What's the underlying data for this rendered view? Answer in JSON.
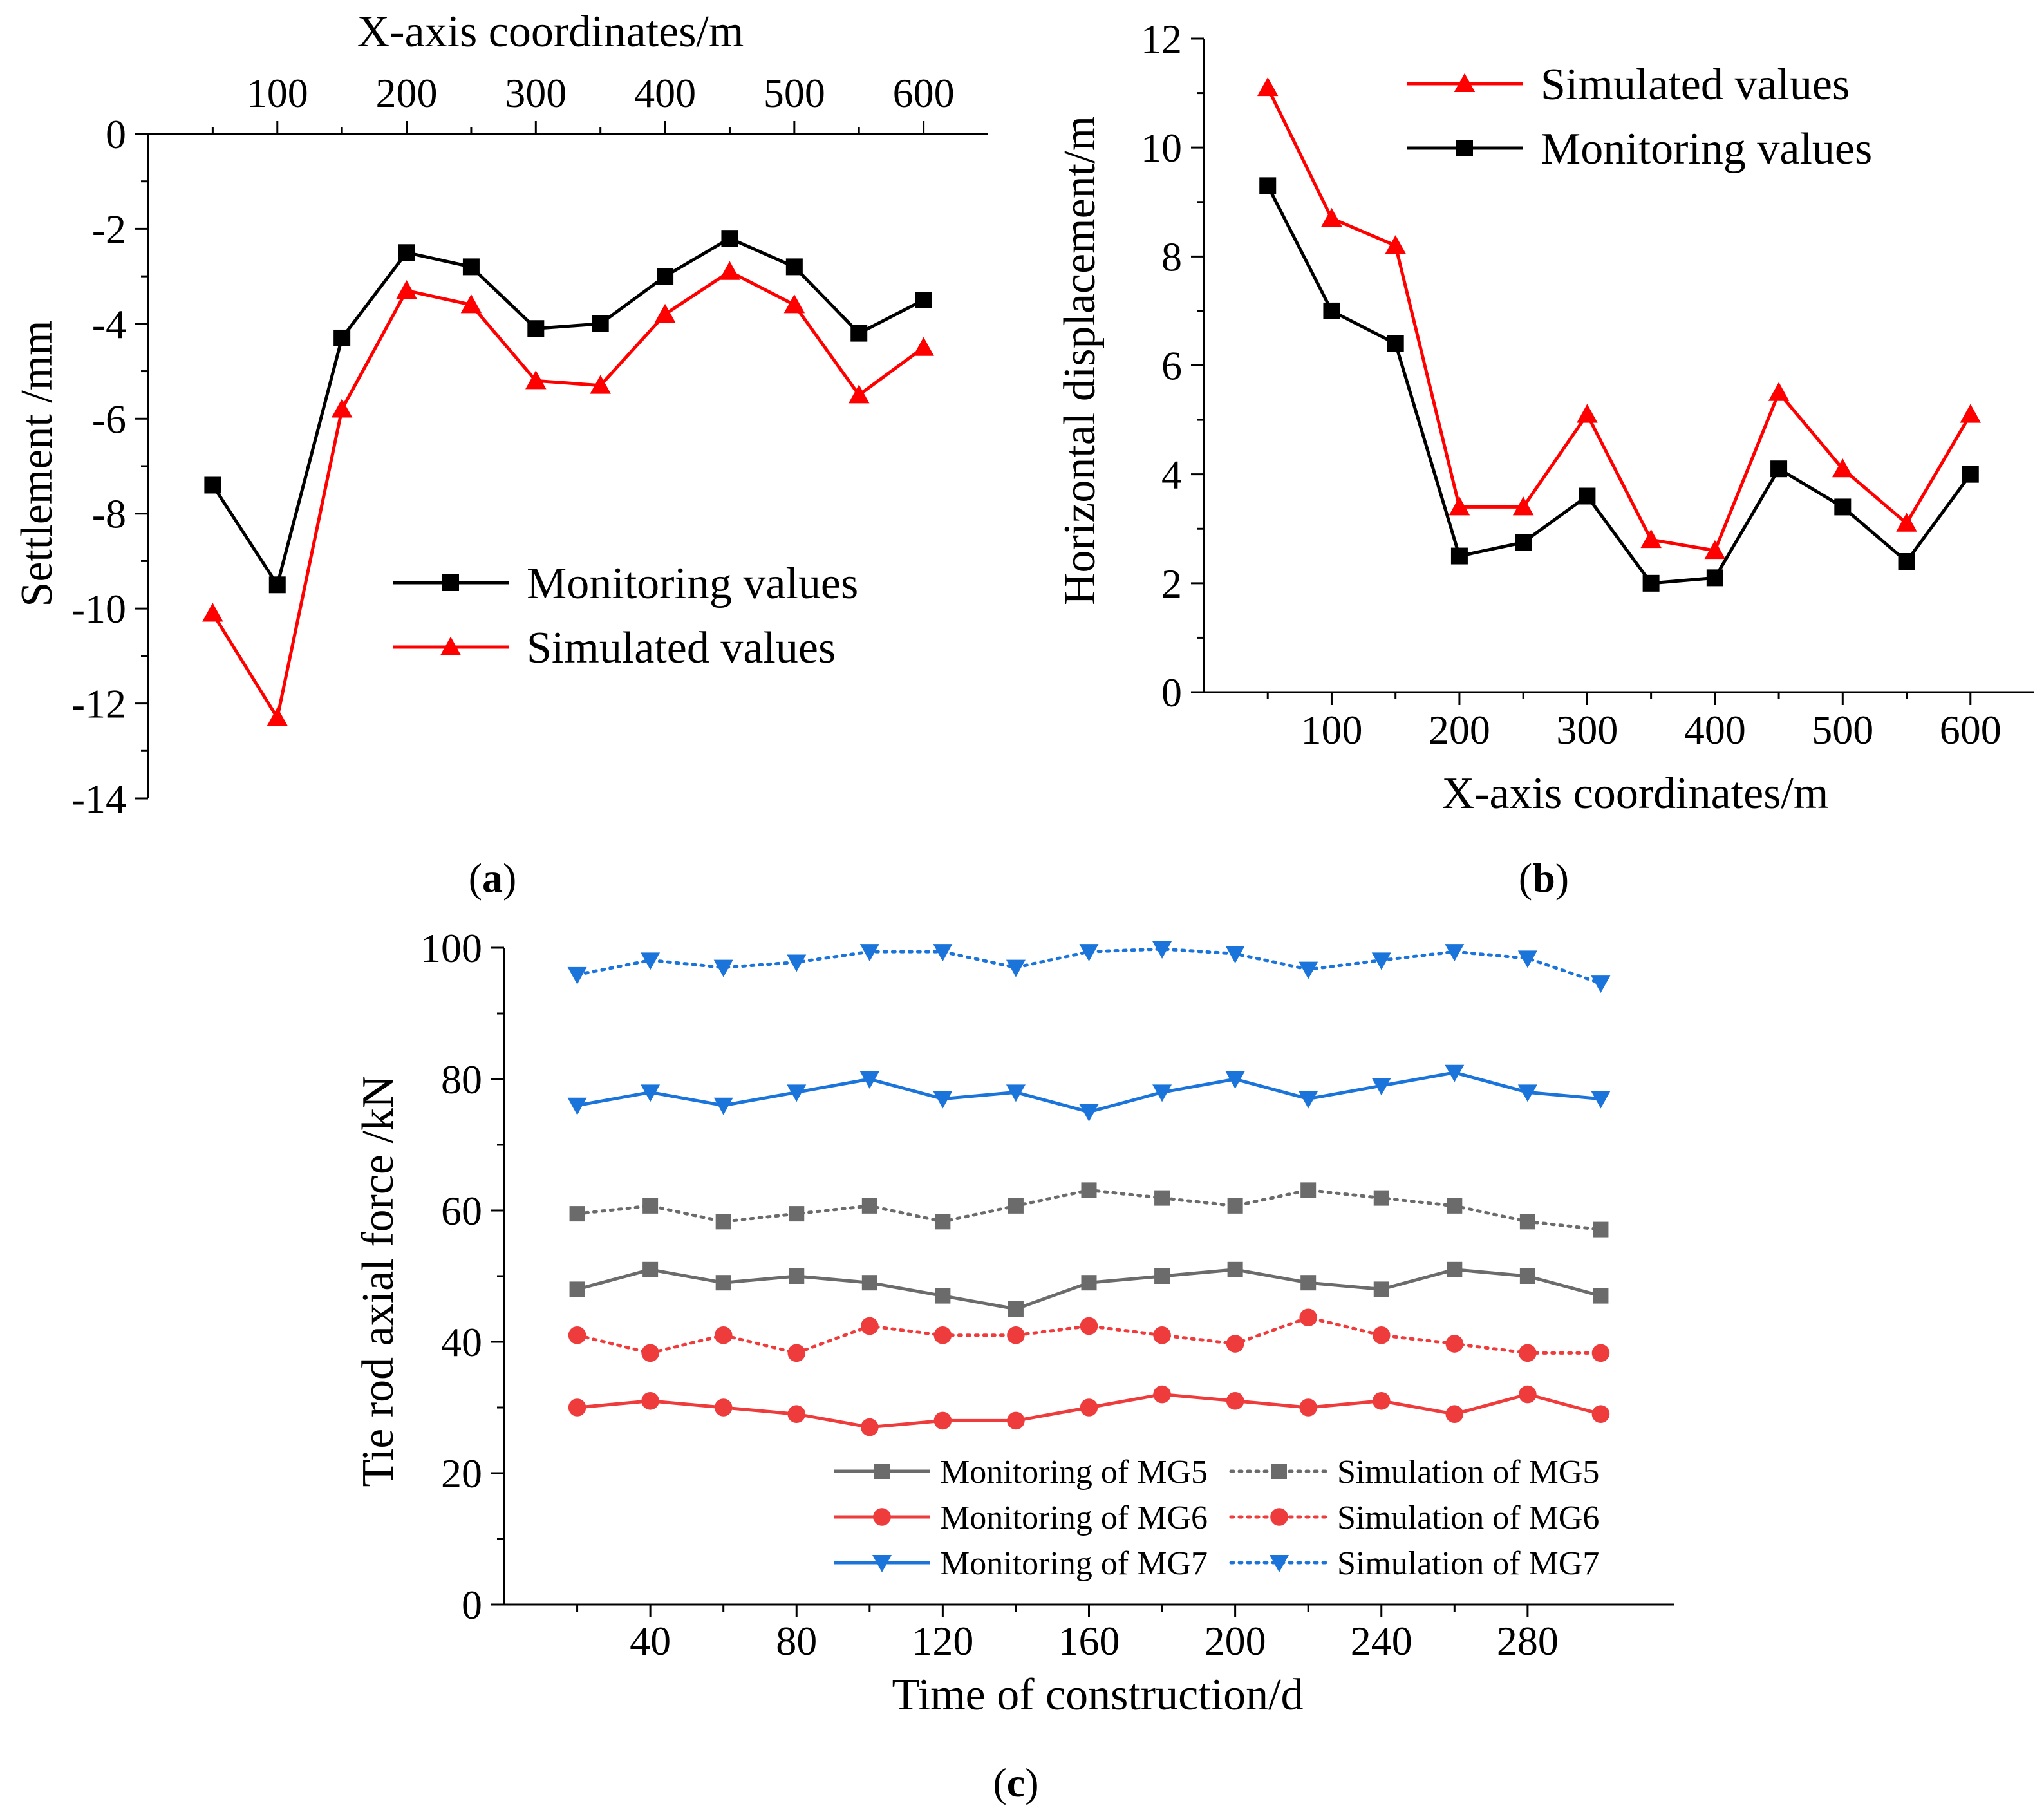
{
  "chart_data": [
    {
      "panel": "(a)",
      "panel_letter": "a",
      "type": "line",
      "title": "",
      "xlabel": "X-axis coordinates/m",
      "ylabel": "Settlement /mm",
      "x_axis_position": "top",
      "xlim": [
        0,
        650
      ],
      "ylim": [
        -14,
        0
      ],
      "xticks": [
        100,
        200,
        300,
        400,
        500,
        600
      ],
      "yticks": [
        0,
        -2,
        -4,
        -6,
        -8,
        -10,
        -12,
        -14
      ],
      "x": [
        50,
        100,
        150,
        200,
        250,
        300,
        350,
        400,
        450,
        500,
        550,
        600
      ],
      "legend_position": "lower-right",
      "series": [
        {
          "name": "Monitoring values",
          "color": "#000000",
          "marker": "square",
          "style": "solid",
          "values": [
            -7.4,
            -9.5,
            -4.3,
            -2.5,
            -2.8,
            -4.1,
            -4.0,
            -3.0,
            -2.2,
            -2.8,
            -4.2,
            -3.5
          ]
        },
        {
          "name": "Simulated values",
          "color": "#ff0000",
          "marker": "triangle-up",
          "style": "solid",
          "values": [
            -10.1,
            -12.3,
            -5.8,
            -3.3,
            -3.6,
            -5.2,
            -5.3,
            -3.8,
            -2.9,
            -3.6,
            -5.5,
            -4.5
          ]
        }
      ]
    },
    {
      "panel": "(b)",
      "panel_letter": "b",
      "type": "line",
      "title": "",
      "xlabel": "X-axis coordinates/m",
      "ylabel": "Horizontal displacement/m",
      "x_axis_position": "bottom",
      "xlim": [
        0,
        650
      ],
      "ylim": [
        0,
        12
      ],
      "xticks": [
        100,
        200,
        300,
        400,
        500,
        600
      ],
      "yticks": [
        0,
        2,
        4,
        6,
        8,
        10,
        12
      ],
      "x": [
        50,
        100,
        150,
        200,
        250,
        300,
        350,
        400,
        450,
        500,
        550,
        600
      ],
      "legend_position": "top-right",
      "series": [
        {
          "name": "Simulated values",
          "color": "#ff0000",
          "marker": "triangle-up",
          "style": "solid",
          "values": [
            11.1,
            8.7,
            8.2,
            3.4,
            3.4,
            5.1,
            2.8,
            2.6,
            5.5,
            4.1,
            3.1,
            5.1
          ]
        },
        {
          "name": "Monitoring values",
          "color": "#000000",
          "marker": "square",
          "style": "solid",
          "values": [
            9.3,
            7.0,
            6.4,
            2.5,
            2.75,
            3.6,
            2.0,
            2.1,
            4.1,
            3.4,
            2.4,
            4.0
          ]
        }
      ]
    },
    {
      "panel": "(c)",
      "panel_letter": "c",
      "type": "line",
      "title": "",
      "xlabel": "Time of construction/d",
      "ylabel": "Tie rod axial force /kN",
      "x_axis_position": "bottom",
      "xlim": [
        0,
        320
      ],
      "ylim": [
        0,
        100
      ],
      "xticks": [
        40,
        80,
        120,
        160,
        200,
        240,
        280
      ],
      "yticks": [
        0,
        20,
        40,
        60,
        80,
        100
      ],
      "x": [
        20,
        40,
        60,
        80,
        100,
        120,
        140,
        160,
        180,
        200,
        220,
        240,
        260,
        280,
        300
      ],
      "legend_position": "bottom-right",
      "series": [
        {
          "name": "Monitoring of MG5",
          "color": "#6b6b6b",
          "marker": "square",
          "style": "solid",
          "values": [
            48,
            51,
            49,
            50,
            49,
            47,
            45,
            49,
            50,
            51,
            49,
            48,
            51,
            50,
            47
          ]
        },
        {
          "name": "Simulation of MG5",
          "color": "#6b6b6b",
          "marker": "square",
          "style": "dotted",
          "values": [
            59.5,
            60.7,
            58.3,
            59.5,
            60.7,
            58.3,
            60.7,
            63.1,
            61.9,
            60.7,
            63.1,
            61.9,
            60.7,
            58.3,
            57.1
          ]
        },
        {
          "name": "Monitoring of MG6",
          "color": "#ee3b3b",
          "marker": "circle",
          "style": "solid",
          "values": [
            30,
            31,
            30,
            29,
            27,
            28,
            28,
            30,
            32,
            31,
            30,
            31,
            29,
            32,
            29
          ]
        },
        {
          "name": "Simulation of MG6",
          "color": "#ee3b3b",
          "marker": "circle",
          "style": "dotted",
          "values": [
            41,
            38.3,
            41,
            38.3,
            42.4,
            41,
            41,
            42.4,
            41,
            39.7,
            43.7,
            41,
            39.7,
            38.3,
            38.3
          ]
        },
        {
          "name": "Monitoring of MG7",
          "color": "#1a74d9",
          "marker": "triangle-down",
          "style": "solid",
          "values": [
            76,
            78,
            76,
            78,
            80,
            77,
            78,
            75,
            78,
            80,
            77,
            79,
            81,
            78,
            77
          ]
        },
        {
          "name": "Simulation of MG7",
          "color": "#1a74d9",
          "marker": "triangle-down",
          "style": "dotted",
          "values": [
            95.9,
            98.1,
            97,
            97.8,
            99.4,
            99.4,
            97,
            99.4,
            99.8,
            99.1,
            96.7,
            98.1,
            99.4,
            98.4,
            94.6
          ]
        }
      ]
    }
  ]
}
